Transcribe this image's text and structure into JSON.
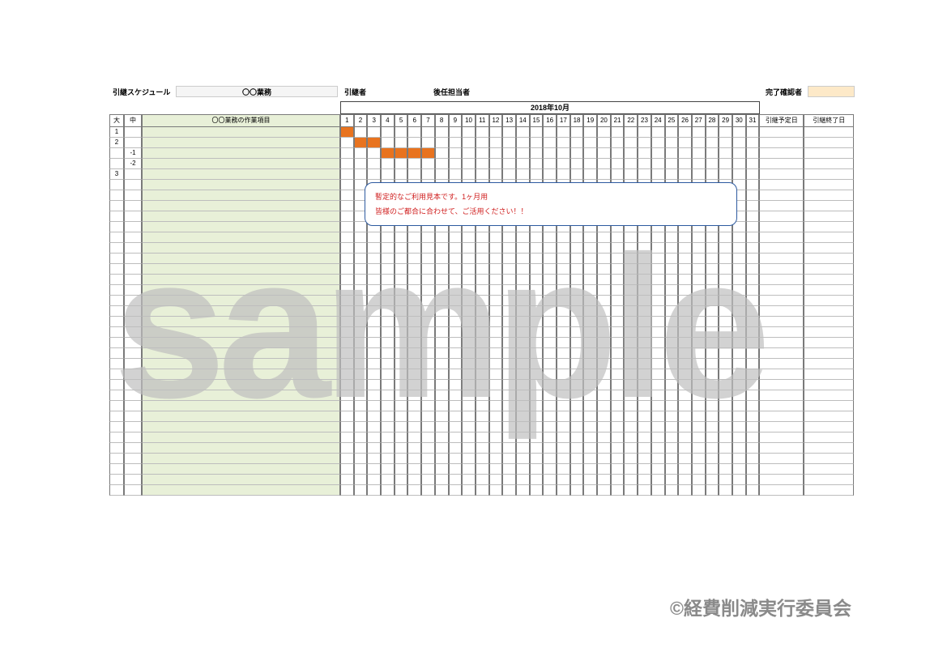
{
  "header": {
    "schedule_label": "引継スケジュール",
    "gyomu_value": "〇〇業務",
    "handover_label": "引継者",
    "successor_label": "後任担当者",
    "confirmer_label": "完了確認者"
  },
  "calendar": {
    "title": "2018年10月",
    "days": [
      "1",
      "2",
      "3",
      "4",
      "5",
      "6",
      "7",
      "8",
      "9",
      "10",
      "11",
      "12",
      "13",
      "14",
      "15",
      "16",
      "17",
      "18",
      "19",
      "20",
      "21",
      "22",
      "23",
      "24",
      "25",
      "26",
      "27",
      "28",
      "29",
      "30",
      "31"
    ]
  },
  "columns": {
    "dai": "大",
    "chu": "中",
    "item_header": "〇〇業務の作業項目",
    "plan_date": "引継予定日",
    "done_date": "引継終了日"
  },
  "tasks": [
    {
      "dai": "1",
      "chu": "",
      "bars": [
        [
          1,
          1
        ]
      ]
    },
    {
      "dai": "2",
      "chu": "",
      "bars": [
        [
          2,
          3
        ]
      ]
    },
    {
      "dai": "",
      "chu": "-1",
      "bars": [
        [
          4,
          7
        ]
      ]
    },
    {
      "dai": "",
      "chu": "-2",
      "bars": []
    },
    {
      "dai": "3",
      "chu": "",
      "bars": []
    }
  ],
  "empty_rows_after_tasks": 30,
  "gantt": {
    "bar_color": "#e8731f",
    "border_color": "#7a7a7a",
    "row_border_color": "#bdbdbd",
    "item_header_bg": "#e8f0d8"
  },
  "note": {
    "line1": "暫定的なご利用見本です。1ヶ月用",
    "line2": "皆様のご都合に合わせて、ご活用ください！！",
    "border_color": "#2d5aa0",
    "text_color": "#d02020"
  },
  "watermark": {
    "text": "sample",
    "color": "#bfbfbf"
  },
  "copyright": {
    "text": "©経費削減実行委員会",
    "color": "#8a8a8a"
  }
}
